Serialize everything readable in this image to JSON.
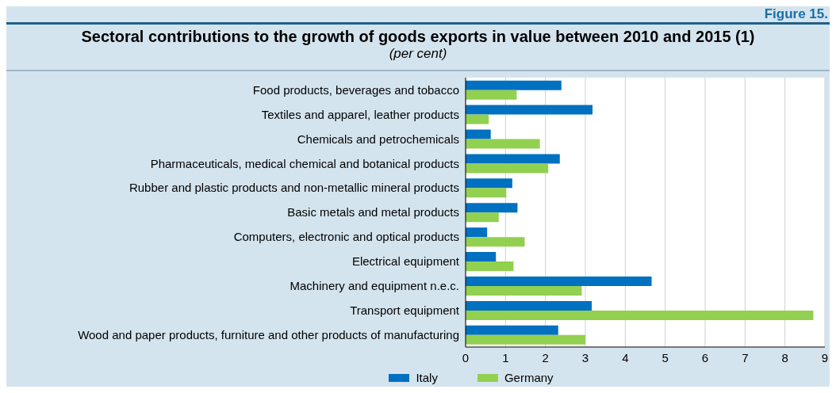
{
  "chart_data": {
    "type": "bar",
    "orientation": "horizontal",
    "title": "Sectoral contributions to the growth of goods exports in value between 2010 and 2015 (1)",
    "subtitle": "(per cent)",
    "annotations": [
      "Figure 15."
    ],
    "categories": [
      "Food products, beverages and tobacco",
      "Textiles and apparel, leather products",
      "Chemicals and petrochemicals",
      "Pharmaceuticals, medical chemical and botanical products",
      "Rubber and plastic products and non-metallic mineral products",
      "Basic metals and metal products",
      "Computers, electronic and optical products",
      "Electrical equipment",
      "Machinery and equipment n.e.c.",
      "Transport equipment",
      "Wood and paper products, furniture and other products of manufacturing"
    ],
    "series": [
      {
        "name": "Italy",
        "color": "#0070c0",
        "values": [
          2.4,
          3.18,
          0.63,
          2.36,
          1.17,
          1.3,
          0.54,
          0.76,
          4.66,
          3.16,
          2.32
        ]
      },
      {
        "name": "Germany",
        "color": "#92d050",
        "values": [
          1.28,
          0.58,
          1.86,
          2.07,
          1.02,
          0.83,
          1.48,
          1.2,
          2.91,
          8.71,
          3.0
        ]
      }
    ],
    "xlim": [
      0,
      9
    ],
    "xticks": [
      0,
      1,
      2,
      3,
      4,
      5,
      6,
      7,
      8,
      9
    ],
    "grid": "x",
    "legend": "bottom"
  }
}
